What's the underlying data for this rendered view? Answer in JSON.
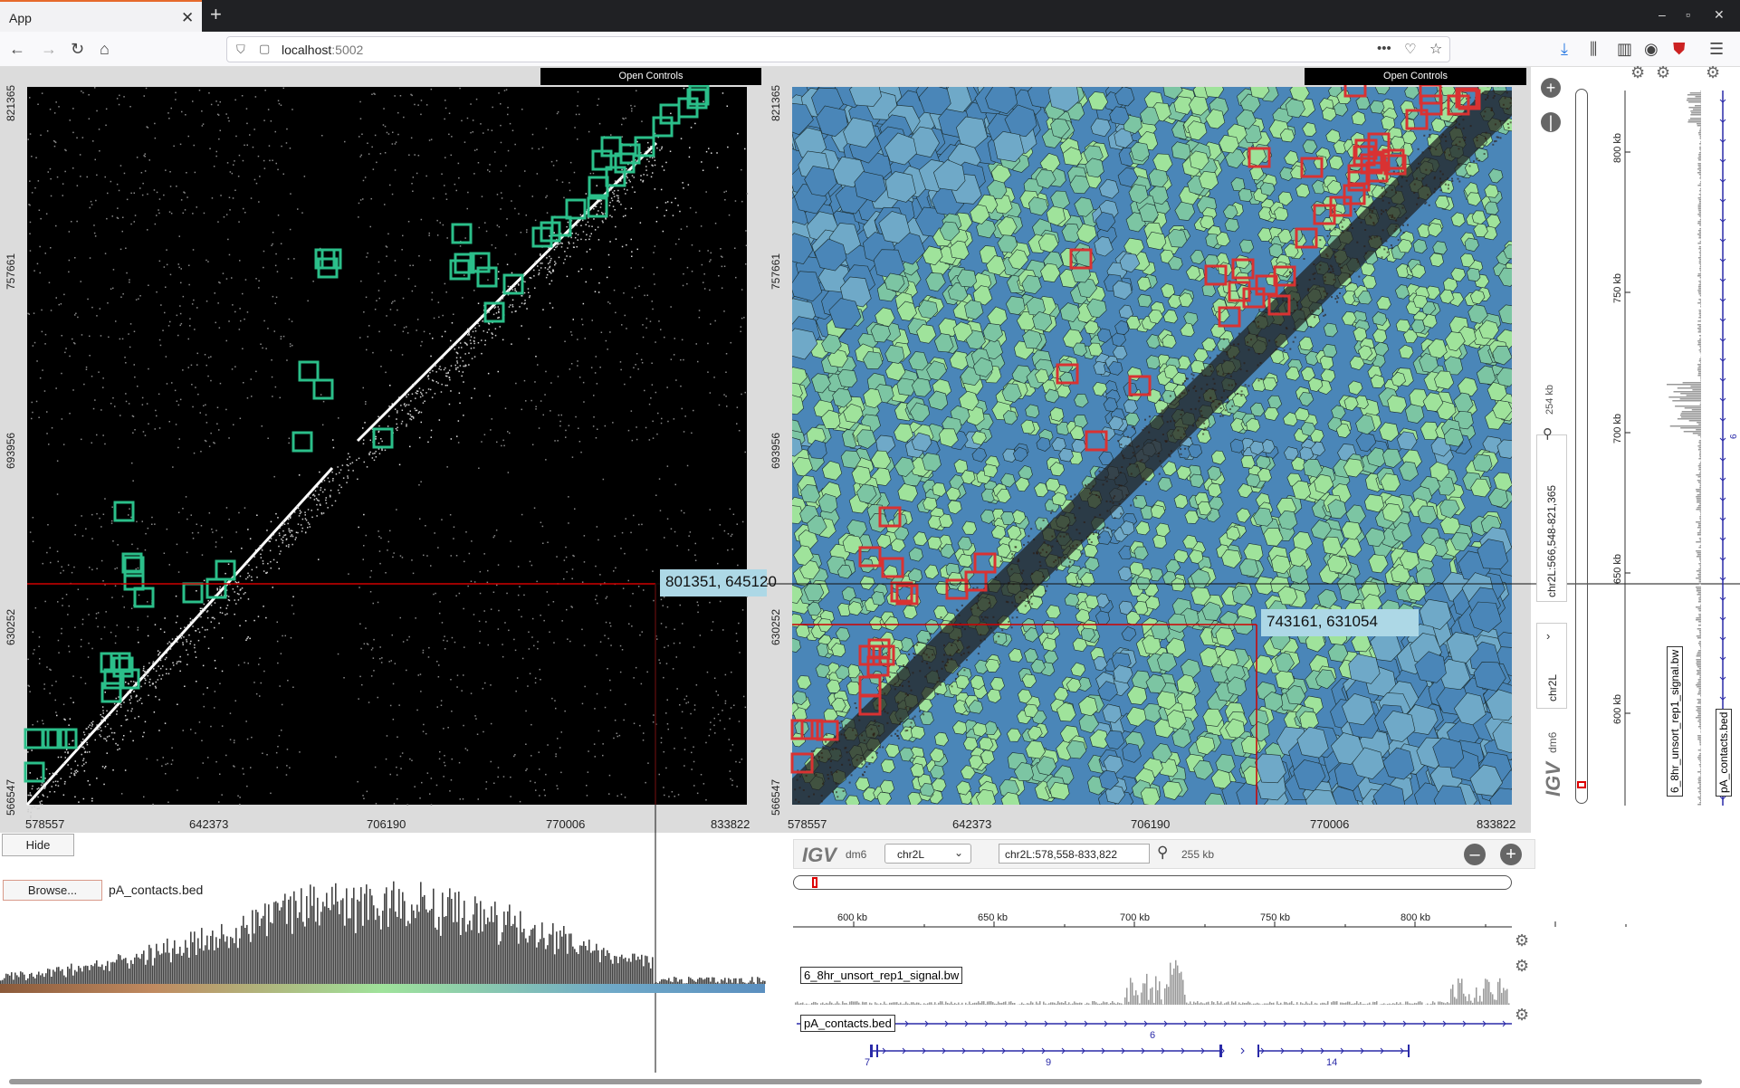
{
  "browser": {
    "tab_title": "App",
    "url_host": "localhost",
    "url_port": ":5002"
  },
  "left_heatmap": {
    "open_controls": "Open Controls",
    "y_ticks": [
      "821365",
      "757661",
      "693956",
      "630252",
      "566547"
    ],
    "x_ticks": [
      "578557",
      "642373",
      "706190",
      "770006",
      "833822"
    ],
    "tooltip": "801351, 645120"
  },
  "right_heatmap": {
    "open_controls": "Open Controls",
    "y_ticks": [
      "821365",
      "757661",
      "693956",
      "630252",
      "566547"
    ],
    "x_ticks": [
      "578557",
      "642373",
      "706190",
      "770006",
      "833822"
    ],
    "tooltip": "743161, 631054"
  },
  "left_bottom": {
    "hide_label": "Hide",
    "browse_label": "Browse...",
    "file_name": "pA_contacts.bed"
  },
  "igv_bottom": {
    "logo": "IGV",
    "genome": "dm6",
    "chromosome": "chr2L",
    "locus": "chr2L:578,558-833,822",
    "width": "255 kb",
    "ruler_ticks": [
      "600 kb",
      "650 kb",
      "700 kb",
      "750 kb",
      "800 kb"
    ],
    "track_signal": "6_8hr_unsort_rep1_signal.bw",
    "track_bed": "pA_contacts.bed",
    "feature_labels": [
      "6",
      "7",
      "9",
      "14"
    ]
  },
  "igv_right": {
    "logo": "IGV",
    "genome": "dm6",
    "chromosome": "chr2L",
    "locus": "chr2L:566,548-821,365",
    "width": "254 kb",
    "ruler_ticks": [
      "800 kb",
      "750 kb",
      "700 kb",
      "650 kb",
      "600 kb"
    ],
    "track_signal": "6_8hr_unsort_rep1_signal.bw",
    "track_bed": "pA_contacts.bed",
    "feature_label": "6"
  },
  "colors": {
    "left_marker": "#2bbf8a",
    "right_marker": "#d93232",
    "crosshair": "#d00000",
    "cell_blue": "#4a86b8",
    "cell_green": "#9fe39b",
    "feature_blue": "#2a2aa8"
  }
}
